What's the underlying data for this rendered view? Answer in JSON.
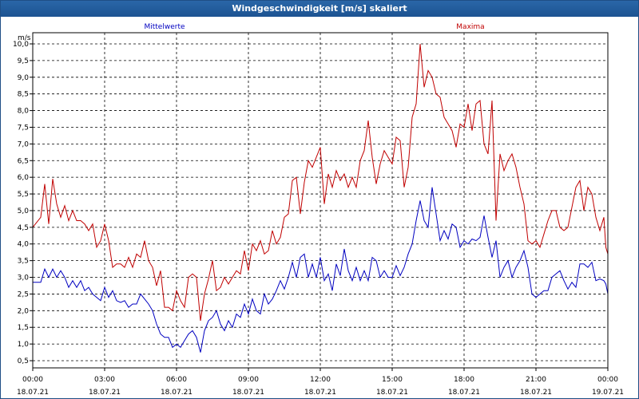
{
  "window": {
    "title": "Windgeschwindigkeit [m/s] skaliert"
  },
  "chart_data": {
    "type": "line",
    "title": "Windgeschwindigkeit [m/s] skaliert",
    "ylabel": "m/s",
    "xlabel": "",
    "ylim": [
      0.5,
      10.0
    ],
    "xlim": [
      "18.07.21 00:00",
      "19.07.21 00:00"
    ],
    "grid": true,
    "legend": "top",
    "y_ticks": [
      "0,5",
      "1,0",
      "1,5",
      "2,0",
      "2,5",
      "3,0",
      "3,5",
      "4,0",
      "4,5",
      "5,0",
      "5,5",
      "6,0",
      "6,5",
      "7,0",
      "7,5",
      "8,0",
      "8,5",
      "9,0",
      "9,5",
      "10,0"
    ],
    "x_ticks": [
      {
        "time": "00:00",
        "date": "18.07.21"
      },
      {
        "time": "03:00",
        "date": "18.07.21"
      },
      {
        "time": "06:00",
        "date": "18.07.21"
      },
      {
        "time": "09:00",
        "date": "18.07.21"
      },
      {
        "time": "12:00",
        "date": "18.07.21"
      },
      {
        "time": "15:00",
        "date": "18.07.21"
      },
      {
        "time": "18:00",
        "date": "18.07.21"
      },
      {
        "time": "21:00",
        "date": "18.07.21"
      },
      {
        "time": "00:00",
        "date": "19.07.21"
      }
    ],
    "series": [
      {
        "name": "Mittelwerte",
        "color": "#0000c0",
        "points": [
          [
            "00:00",
            2.85
          ],
          [
            "00:20",
            2.85
          ],
          [
            "00:30",
            3.25
          ],
          [
            "00:40",
            3.0
          ],
          [
            "00:50",
            3.25
          ],
          [
            "01:00",
            3.0
          ],
          [
            "01:10",
            3.2
          ],
          [
            "01:20",
            3.0
          ],
          [
            "01:30",
            2.7
          ],
          [
            "01:40",
            2.9
          ],
          [
            "01:50",
            2.7
          ],
          [
            "02:00",
            2.9
          ],
          [
            "02:10",
            2.6
          ],
          [
            "02:20",
            2.7
          ],
          [
            "02:30",
            2.5
          ],
          [
            "02:40",
            2.4
          ],
          [
            "02:50",
            2.3
          ],
          [
            "03:00",
            2.7
          ],
          [
            "03:10",
            2.4
          ],
          [
            "03:20",
            2.6
          ],
          [
            "03:30",
            2.3
          ],
          [
            "03:40",
            2.25
          ],
          [
            "03:50",
            2.3
          ],
          [
            "04:00",
            2.1
          ],
          [
            "04:10",
            2.2
          ],
          [
            "04:20",
            2.2
          ],
          [
            "04:30",
            2.5
          ],
          [
            "04:40",
            2.35
          ],
          [
            "04:50",
            2.2
          ],
          [
            "05:00",
            2.0
          ],
          [
            "05:10",
            1.6
          ],
          [
            "05:20",
            1.3
          ],
          [
            "05:30",
            1.2
          ],
          [
            "05:40",
            1.2
          ],
          [
            "05:50",
            0.9
          ],
          [
            "06:00",
            1.0
          ],
          [
            "06:10",
            0.9
          ],
          [
            "06:20",
            1.1
          ],
          [
            "06:30",
            1.3
          ],
          [
            "06:40",
            1.4
          ],
          [
            "06:50",
            1.2
          ],
          [
            "07:00",
            0.75
          ],
          [
            "07:10",
            1.4
          ],
          [
            "07:20",
            1.7
          ],
          [
            "07:30",
            1.8
          ],
          [
            "07:40",
            2.0
          ],
          [
            "07:50",
            1.6
          ],
          [
            "08:00",
            1.4
          ],
          [
            "08:10",
            1.7
          ],
          [
            "08:20",
            1.5
          ],
          [
            "08:30",
            1.9
          ],
          [
            "08:40",
            1.8
          ],
          [
            "08:50",
            2.2
          ],
          [
            "09:00",
            1.9
          ],
          [
            "09:10",
            2.35
          ],
          [
            "09:20",
            2.0
          ],
          [
            "09:30",
            1.9
          ],
          [
            "09:40",
            2.5
          ],
          [
            "09:50",
            2.2
          ],
          [
            "10:00",
            2.35
          ],
          [
            "10:10",
            2.6
          ],
          [
            "10:20",
            2.9
          ],
          [
            "10:30",
            2.65
          ],
          [
            "10:40",
            3.0
          ],
          [
            "10:50",
            3.45
          ],
          [
            "11:00",
            3.0
          ],
          [
            "11:10",
            3.6
          ],
          [
            "11:20",
            3.7
          ],
          [
            "11:30",
            3.0
          ],
          [
            "11:40",
            3.4
          ],
          [
            "11:50",
            3.0
          ],
          [
            "12:00",
            3.6
          ],
          [
            "12:10",
            2.9
          ],
          [
            "12:20",
            3.1
          ],
          [
            "12:30",
            2.6
          ],
          [
            "12:40",
            3.4
          ],
          [
            "12:50",
            3.05
          ],
          [
            "13:00",
            3.85
          ],
          [
            "13:10",
            3.2
          ],
          [
            "13:20",
            2.9
          ],
          [
            "13:30",
            3.3
          ],
          [
            "13:40",
            2.9
          ],
          [
            "13:50",
            3.2
          ],
          [
            "14:00",
            2.9
          ],
          [
            "14:10",
            3.6
          ],
          [
            "14:20",
            3.5
          ],
          [
            "14:30",
            3.0
          ],
          [
            "14:40",
            3.2
          ],
          [
            "14:50",
            3.0
          ],
          [
            "15:00",
            3.0
          ],
          [
            "15:10",
            3.35
          ],
          [
            "15:20",
            3.05
          ],
          [
            "15:30",
            3.3
          ],
          [
            "15:40",
            3.7
          ],
          [
            "15:50",
            4.0
          ],
          [
            "16:00",
            4.7
          ],
          [
            "16:10",
            5.3
          ],
          [
            "16:20",
            4.7
          ],
          [
            "16:30",
            4.5
          ],
          [
            "16:40",
            5.7
          ],
          [
            "16:50",
            4.9
          ],
          [
            "17:00",
            4.1
          ],
          [
            "17:10",
            4.4
          ],
          [
            "17:20",
            4.15
          ],
          [
            "17:30",
            4.6
          ],
          [
            "17:40",
            4.5
          ],
          [
            "17:50",
            3.9
          ],
          [
            "18:00",
            4.1
          ],
          [
            "18:10",
            4.0
          ],
          [
            "18:20",
            4.15
          ],
          [
            "18:30",
            4.1
          ],
          [
            "18:40",
            4.2
          ],
          [
            "18:50",
            4.85
          ],
          [
            "19:00",
            4.2
          ],
          [
            "19:10",
            3.6
          ],
          [
            "19:20",
            4.1
          ],
          [
            "19:30",
            3.0
          ],
          [
            "19:40",
            3.3
          ],
          [
            "19:50",
            3.5
          ],
          [
            "20:00",
            3.0
          ],
          [
            "20:10",
            3.3
          ],
          [
            "20:20",
            3.5
          ],
          [
            "20:30",
            3.8
          ],
          [
            "20:40",
            3.3
          ],
          [
            "20:50",
            2.5
          ],
          [
            "21:00",
            2.4
          ],
          [
            "21:10",
            2.5
          ],
          [
            "21:20",
            2.6
          ],
          [
            "21:30",
            2.6
          ],
          [
            "21:40",
            3.0
          ],
          [
            "21:50",
            3.1
          ],
          [
            "22:00",
            3.2
          ],
          [
            "22:10",
            2.9
          ],
          [
            "22:20",
            2.65
          ],
          [
            "22:30",
            2.85
          ],
          [
            "22:40",
            2.7
          ],
          [
            "22:50",
            3.4
          ],
          [
            "23:00",
            3.4
          ],
          [
            "23:10",
            3.3
          ],
          [
            "23:20",
            3.45
          ],
          [
            "23:30",
            2.9
          ],
          [
            "23:40",
            2.95
          ],
          [
            "23:50",
            2.9
          ],
          [
            "23:55",
            2.8
          ],
          [
            "24:00",
            2.5
          ]
        ]
      },
      {
        "name": "Maxima",
        "color": "#c00000",
        "points": [
          [
            "00:00",
            4.5
          ],
          [
            "00:20",
            4.8
          ],
          [
            "00:30",
            5.8
          ],
          [
            "00:40",
            4.6
          ],
          [
            "00:50",
            5.95
          ],
          [
            "01:00",
            5.2
          ],
          [
            "01:10",
            4.8
          ],
          [
            "01:20",
            5.15
          ],
          [
            "01:30",
            4.7
          ],
          [
            "01:40",
            5.0
          ],
          [
            "01:50",
            4.7
          ],
          [
            "02:00",
            4.7
          ],
          [
            "02:10",
            4.6
          ],
          [
            "02:20",
            4.4
          ],
          [
            "02:30",
            4.6
          ],
          [
            "02:40",
            3.9
          ],
          [
            "02:50",
            4.1
          ],
          [
            "03:00",
            4.6
          ],
          [
            "03:10",
            4.1
          ],
          [
            "03:20",
            3.3
          ],
          [
            "03:30",
            3.4
          ],
          [
            "03:40",
            3.4
          ],
          [
            "03:50",
            3.3
          ],
          [
            "04:00",
            3.6
          ],
          [
            "04:10",
            3.3
          ],
          [
            "04:20",
            3.7
          ],
          [
            "04:30",
            3.6
          ],
          [
            "04:40",
            4.1
          ],
          [
            "04:50",
            3.5
          ],
          [
            "05:00",
            3.3
          ],
          [
            "05:10",
            2.75
          ],
          [
            "05:20",
            3.2
          ],
          [
            "05:30",
            2.1
          ],
          [
            "05:40",
            2.1
          ],
          [
            "05:50",
            2.0
          ],
          [
            "06:00",
            2.6
          ],
          [
            "06:10",
            2.3
          ],
          [
            "06:20",
            2.1
          ],
          [
            "06:30",
            3.0
          ],
          [
            "06:40",
            3.1
          ],
          [
            "06:50",
            3.0
          ],
          [
            "07:00",
            1.7
          ],
          [
            "07:10",
            2.5
          ],
          [
            "07:20",
            2.95
          ],
          [
            "07:30",
            3.5
          ],
          [
            "07:40",
            2.6
          ],
          [
            "07:50",
            2.7
          ],
          [
            "08:00",
            3.0
          ],
          [
            "08:10",
            2.8
          ],
          [
            "08:20",
            3.0
          ],
          [
            "08:30",
            3.2
          ],
          [
            "08:40",
            3.1
          ],
          [
            "08:50",
            3.8
          ],
          [
            "09:00",
            3.2
          ],
          [
            "09:10",
            4.0
          ],
          [
            "09:20",
            3.8
          ],
          [
            "09:30",
            4.1
          ],
          [
            "09:40",
            3.7
          ],
          [
            "09:50",
            3.8
          ],
          [
            "10:00",
            4.4
          ],
          [
            "10:10",
            4.0
          ],
          [
            "10:20",
            4.2
          ],
          [
            "10:30",
            4.8
          ],
          [
            "10:40",
            4.9
          ],
          [
            "10:50",
            5.9
          ],
          [
            "11:00",
            6.0
          ],
          [
            "11:10",
            4.9
          ],
          [
            "11:20",
            5.85
          ],
          [
            "11:30",
            6.5
          ],
          [
            "11:40",
            6.3
          ],
          [
            "11:50",
            6.6
          ],
          [
            "12:00",
            6.9
          ],
          [
            "12:10",
            5.2
          ],
          [
            "12:20",
            6.1
          ],
          [
            "12:30",
            5.7
          ],
          [
            "12:40",
            6.2
          ],
          [
            "12:50",
            5.9
          ],
          [
            "13:00",
            6.1
          ],
          [
            "13:10",
            5.7
          ],
          [
            "13:20",
            6.0
          ],
          [
            "13:30",
            5.7
          ],
          [
            "13:40",
            6.5
          ],
          [
            "13:50",
            6.8
          ],
          [
            "14:00",
            7.7
          ],
          [
            "14:10",
            6.6
          ],
          [
            "14:20",
            5.8
          ],
          [
            "14:30",
            6.4
          ],
          [
            "14:40",
            6.8
          ],
          [
            "14:50",
            6.6
          ],
          [
            "15:00",
            6.4
          ],
          [
            "15:10",
            7.2
          ],
          [
            "15:20",
            7.1
          ],
          [
            "15:30",
            5.7
          ],
          [
            "15:40",
            6.3
          ],
          [
            "15:50",
            7.8
          ],
          [
            "16:00",
            8.2
          ],
          [
            "16:10",
            10.0
          ],
          [
            "16:20",
            8.7
          ],
          [
            "16:30",
            9.2
          ],
          [
            "16:40",
            9.0
          ],
          [
            "16:50",
            8.5
          ],
          [
            "17:00",
            8.4
          ],
          [
            "17:10",
            7.8
          ],
          [
            "17:20",
            7.6
          ],
          [
            "17:30",
            7.4
          ],
          [
            "17:40",
            6.9
          ],
          [
            "17:50",
            7.6
          ],
          [
            "18:00",
            7.5
          ],
          [
            "18:10",
            8.2
          ],
          [
            "18:20",
            7.4
          ],
          [
            "18:30",
            8.2
          ],
          [
            "18:40",
            8.3
          ],
          [
            "18:50",
            7.0
          ],
          [
            "19:00",
            6.7
          ],
          [
            "19:10",
            8.3
          ],
          [
            "19:20",
            4.7
          ],
          [
            "19:30",
            6.7
          ],
          [
            "19:40",
            6.2
          ],
          [
            "19:50",
            6.5
          ],
          [
            "20:00",
            6.7
          ],
          [
            "20:10",
            6.3
          ],
          [
            "20:20",
            5.7
          ],
          [
            "20:30",
            5.2
          ],
          [
            "20:40",
            4.1
          ],
          [
            "20:50",
            4.0
          ],
          [
            "21:00",
            4.1
          ],
          [
            "21:10",
            3.9
          ],
          [
            "21:20",
            4.3
          ],
          [
            "21:30",
            4.7
          ],
          [
            "21:40",
            5.0
          ],
          [
            "21:50",
            5.0
          ],
          [
            "22:00",
            4.5
          ],
          [
            "22:10",
            4.4
          ],
          [
            "22:20",
            4.5
          ],
          [
            "22:30",
            5.1
          ],
          [
            "22:40",
            5.7
          ],
          [
            "22:50",
            5.9
          ],
          [
            "23:00",
            5.0
          ],
          [
            "23:10",
            5.7
          ],
          [
            "23:20",
            5.5
          ],
          [
            "23:30",
            4.8
          ],
          [
            "23:40",
            4.4
          ],
          [
            "23:50",
            4.8
          ],
          [
            "23:55",
            3.9
          ],
          [
            "24:00",
            3.7
          ]
        ]
      }
    ]
  }
}
